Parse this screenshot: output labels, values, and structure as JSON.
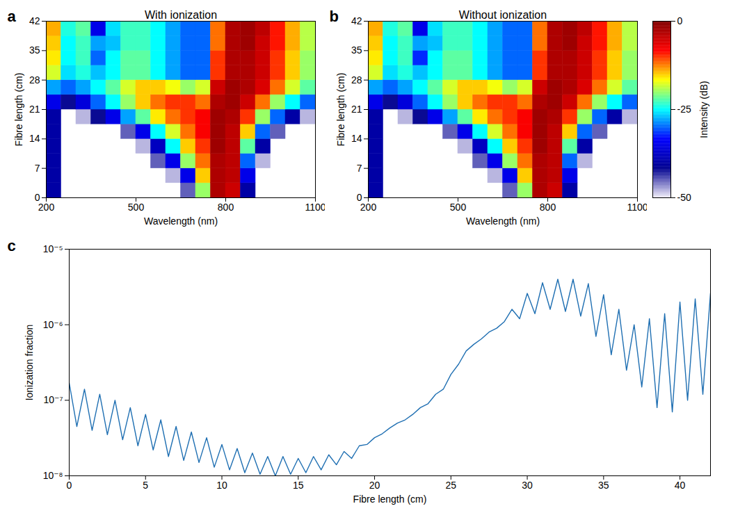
{
  "chart_data": [
    {
      "type": "heatmap",
      "panel": "a",
      "title": "With ionization",
      "x_label": "Wavelength (nm)",
      "y_label": "Fibre length (cm)",
      "xlim": [
        200,
        1100
      ],
      "xticks": [
        200,
        500,
        800,
        1100
      ],
      "ylim": [
        0,
        42
      ],
      "yticks": [
        0,
        7,
        14,
        21,
        28,
        35,
        42
      ],
      "zlim": [
        -50,
        0
      ],
      "x_bins": [
        200,
        250,
        300,
        350,
        400,
        450,
        500,
        550,
        600,
        650,
        700,
        750,
        800,
        850,
        900,
        950,
        1000,
        1050,
        1100
      ],
      "y_bins": [
        0,
        3.5,
        7,
        10.5,
        14,
        17.5,
        21,
        24.5,
        28,
        31.5,
        35,
        38.5,
        42
      ],
      "values": [
        [
          -40,
          null,
          null,
          null,
          null,
          null,
          null,
          null,
          null,
          -45,
          -20,
          -3,
          -5,
          -40,
          null,
          null,
          null,
          null
        ],
        [
          -40,
          null,
          null,
          null,
          null,
          null,
          null,
          null,
          -48,
          -35,
          -15,
          -3,
          -4,
          -35,
          null,
          null,
          null,
          null
        ],
        [
          -40,
          null,
          null,
          null,
          null,
          null,
          null,
          -45,
          -35,
          -20,
          -12,
          -3,
          -4,
          -30,
          -48,
          null,
          null,
          null
        ],
        [
          -40,
          null,
          null,
          null,
          null,
          null,
          -48,
          -38,
          -25,
          -15,
          -10,
          -2,
          -4,
          -22,
          -40,
          null,
          null,
          null
        ],
        [
          -40,
          null,
          null,
          null,
          null,
          -45,
          -35,
          -25,
          -18,
          -12,
          -8,
          -2,
          -4,
          -15,
          -30,
          -45,
          null,
          null
        ],
        [
          -40,
          null,
          -48,
          -42,
          -35,
          -28,
          -22,
          -16,
          -12,
          -10,
          -8,
          -2,
          -3,
          -10,
          -20,
          -30,
          -40,
          -48
        ],
        [
          -35,
          -42,
          -36,
          -30,
          -25,
          -20,
          -15,
          -12,
          -10,
          -10,
          -12,
          -3,
          -2,
          -5,
          -12,
          -20,
          -25,
          -30
        ],
        [
          -28,
          -30,
          -28,
          -25,
          -22,
          -18,
          -15,
          -15,
          -17,
          -20,
          -18,
          -5,
          -2,
          -3,
          -6,
          -12,
          -18,
          -22
        ],
        [
          -18,
          -26,
          -24,
          -27,
          -25,
          -22,
          -22,
          -25,
          -28,
          -30,
          -30,
          -10,
          -3,
          -3,
          -5,
          -10,
          -15,
          -20
        ],
        [
          -16,
          -25,
          -23,
          -30,
          -25,
          -22,
          -22,
          -25,
          -28,
          -30,
          -30,
          -10,
          -3,
          -3,
          -5,
          -10,
          -15,
          -20
        ],
        [
          -15,
          -25,
          -23,
          -28,
          -27,
          -23,
          -23,
          -25,
          -28,
          -30,
          -30,
          -12,
          -3,
          -2,
          -5,
          -9,
          -14,
          -19
        ],
        [
          -14,
          -24,
          -22,
          -35,
          -26,
          -23,
          -23,
          -25,
          -28,
          -30,
          -30,
          -12,
          -3,
          -2,
          -4,
          -9,
          -14,
          -19
        ]
      ]
    },
    {
      "type": "heatmap",
      "panel": "b",
      "title": "Without ionization",
      "x_label": "Wavelength (nm)",
      "y_label": "Fibre length (cm)",
      "xlim": [
        200,
        1100
      ],
      "xticks": [
        200,
        500,
        800,
        1100
      ],
      "ylim": [
        0,
        42
      ],
      "yticks": [
        0,
        7,
        14,
        21,
        28,
        35,
        42
      ],
      "zlim": [
        -50,
        0
      ],
      "zticks": [
        -50,
        -25,
        0
      ],
      "z_label": "Intensity (dB)",
      "x_bins": [
        200,
        250,
        300,
        350,
        400,
        450,
        500,
        550,
        600,
        650,
        700,
        750,
        800,
        850,
        900,
        950,
        1000,
        1050,
        1100
      ],
      "y_bins": [
        0,
        3.5,
        7,
        10.5,
        14,
        17.5,
        21,
        24.5,
        28,
        31.5,
        35,
        38.5,
        42
      ],
      "values": [
        [
          -40,
          null,
          null,
          null,
          null,
          null,
          null,
          null,
          null,
          -45,
          -20,
          -3,
          -5,
          -40,
          null,
          null,
          null,
          null
        ],
        [
          -40,
          null,
          null,
          null,
          null,
          null,
          null,
          null,
          -48,
          -35,
          -15,
          -3,
          -4,
          -35,
          null,
          null,
          null,
          null
        ],
        [
          -40,
          null,
          null,
          null,
          null,
          null,
          null,
          -45,
          -35,
          -20,
          -12,
          -3,
          -4,
          -30,
          -48,
          null,
          null,
          null
        ],
        [
          -40,
          null,
          null,
          null,
          null,
          null,
          -48,
          -38,
          -25,
          -15,
          -10,
          -2,
          -4,
          -22,
          -40,
          null,
          null,
          null
        ],
        [
          -40,
          null,
          null,
          null,
          null,
          -45,
          -35,
          -25,
          -18,
          -12,
          -8,
          -2,
          -4,
          -15,
          -30,
          -45,
          null,
          null
        ],
        [
          -40,
          null,
          -48,
          -42,
          -35,
          -28,
          -22,
          -16,
          -12,
          -10,
          -8,
          -2,
          -3,
          -10,
          -20,
          -30,
          -40,
          -48
        ],
        [
          -35,
          -42,
          -36,
          -30,
          -25,
          -20,
          -15,
          -12,
          -10,
          -10,
          -12,
          -3,
          -2,
          -5,
          -12,
          -20,
          -25,
          -30
        ],
        [
          -28,
          -30,
          -28,
          -25,
          -22,
          -18,
          -15,
          -15,
          -17,
          -20,
          -18,
          -5,
          -2,
          -3,
          -6,
          -12,
          -18,
          -22
        ],
        [
          -18,
          -26,
          -24,
          -27,
          -25,
          -22,
          -22,
          -25,
          -28,
          -30,
          -30,
          -10,
          -3,
          -3,
          -5,
          -10,
          -15,
          -20
        ],
        [
          -16,
          -25,
          -23,
          -32,
          -25,
          -22,
          -22,
          -25,
          -28,
          -30,
          -30,
          -10,
          -3,
          -3,
          -5,
          -10,
          -15,
          -20
        ],
        [
          -15,
          -25,
          -23,
          -28,
          -27,
          -23,
          -23,
          -25,
          -28,
          -30,
          -30,
          -12,
          -3,
          -2,
          -5,
          -9,
          -14,
          -19
        ],
        [
          -14,
          -24,
          -22,
          -35,
          -26,
          -23,
          -23,
          -25,
          -28,
          -30,
          -30,
          -12,
          -3,
          -2,
          -4,
          -9,
          -14,
          -19
        ]
      ]
    },
    {
      "type": "line",
      "panel": "c",
      "x_label": "Fibre length (cm)",
      "y_label": "Ionization fraction",
      "log": "y",
      "grid": false,
      "color": "#1f6fb2",
      "xlim": [
        0,
        42
      ],
      "xticks": [
        0,
        5,
        10,
        15,
        20,
        25,
        30,
        35,
        40
      ],
      "ylim": [
        1e-08,
        1e-05
      ],
      "yticks": [
        {
          "value": 1e-08,
          "label": "10⁻⁸"
        },
        {
          "value": 1e-07,
          "label": "10⁻⁷"
        },
        {
          "value": 1e-06,
          "label": "10⁻⁶"
        },
        {
          "value": 1e-05,
          "label": "10⁻⁵"
        }
      ],
      "x": [
        0,
        0.5,
        1,
        1.5,
        2,
        2.5,
        3,
        3.5,
        4,
        4.5,
        5,
        5.5,
        6,
        6.5,
        7,
        7.5,
        8,
        8.5,
        9,
        9.5,
        10,
        10.5,
        11,
        11.5,
        12,
        12.5,
        13,
        13.5,
        14,
        14.5,
        15,
        15.5,
        16,
        16.5,
        17,
        17.5,
        18,
        18.5,
        19,
        19.5,
        20,
        20.5,
        21,
        21.5,
        22,
        22.5,
        23,
        23.5,
        24,
        24.5,
        25,
        25.5,
        26,
        26.5,
        27,
        27.5,
        28,
        28.5,
        29,
        29.5,
        30,
        30.5,
        31,
        31.5,
        32,
        32.5,
        33,
        33.5,
        34,
        34.5,
        35,
        35.5,
        36,
        36.5,
        37,
        37.5,
        38,
        38.5,
        39,
        39.5,
        40,
        40.5,
        41,
        41.5,
        42
      ],
      "values": [
        1.7e-07,
        4.5e-08,
        1.4e-07,
        4e-08,
        1.2e-07,
        3.5e-08,
        1e-07,
        3e-08,
        8e-08,
        2.5e-08,
        6.5e-08,
        2.2e-08,
        5.5e-08,
        1.8e-08,
        4.5e-08,
        1.6e-08,
        3.8e-08,
        1.5e-08,
        3.2e-08,
        1.3e-08,
        2.6e-08,
        1.2e-08,
        2.3e-08,
        1.1e-08,
        2e-08,
        1.05e-08,
        1.8e-08,
        1e-08,
        1.8e-08,
        1.05e-08,
        1.7e-08,
        1.1e-08,
        1.8e-08,
        1.2e-08,
        1.9e-08,
        1.4e-08,
        2.1e-08,
        1.7e-08,
        2.5e-08,
        2.6e-08,
        3.2e-08,
        3.6e-08,
        4.3e-08,
        5e-08,
        5.5e-08,
        6.5e-08,
        8e-08,
        9e-08,
        1.2e-07,
        1.4e-07,
        2.2e-07,
        3e-07,
        4.5e-07,
        5.5e-07,
        6.5e-07,
        8e-07,
        9e-07,
        1.1e-06,
        1.6e-06,
        1.2e-06,
        2.6e-06,
        1.4e-06,
        3.6e-06,
        1.6e-06,
        4e-06,
        1.5e-06,
        4e-06,
        1.3e-06,
        3.5e-06,
        7e-07,
        2.5e-06,
        4e-07,
        1.6e-06,
        2.5e-07,
        1e-06,
        1.5e-07,
        1.2e-06,
        8e-08,
        1.4e-06,
        7e-08,
        2e-06,
        1e-07,
        2.2e-06,
        1.2e-07,
        2.6e-06
      ]
    }
  ]
}
